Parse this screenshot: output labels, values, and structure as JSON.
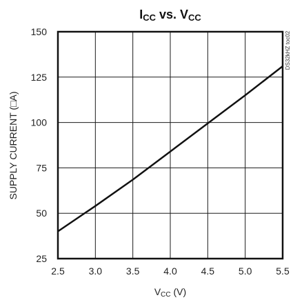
{
  "chart_data": {
    "type": "line",
    "title": {
      "part1_main": "I",
      "part1_sub": "CC",
      "middle": " vs. ",
      "part2_main": "V",
      "part2_sub": "CC"
    },
    "xlabel": {
      "main": "V",
      "sub": "CC",
      "suffix": " (V)"
    },
    "ylabel": "SUPPLY CURRENT (□A)",
    "side_label": "DS32kHZ toc02",
    "xlim": [
      2.5,
      5.5
    ],
    "ylim": [
      25,
      150
    ],
    "x_ticks": [
      "2.5",
      "3.0",
      "3.5",
      "4.0",
      "4.5",
      "5.0",
      "5.5"
    ],
    "y_ticks": [
      "25",
      "50",
      "75",
      "100",
      "125",
      "150"
    ],
    "grid": true,
    "series": [
      {
        "line_color": "#111111",
        "x": [
          2.5,
          3.0,
          3.5,
          4.0,
          4.5,
          5.0,
          5.5
        ],
        "y": [
          40,
          54,
          68.5,
          84,
          99.5,
          115,
          131
        ]
      }
    ]
  }
}
